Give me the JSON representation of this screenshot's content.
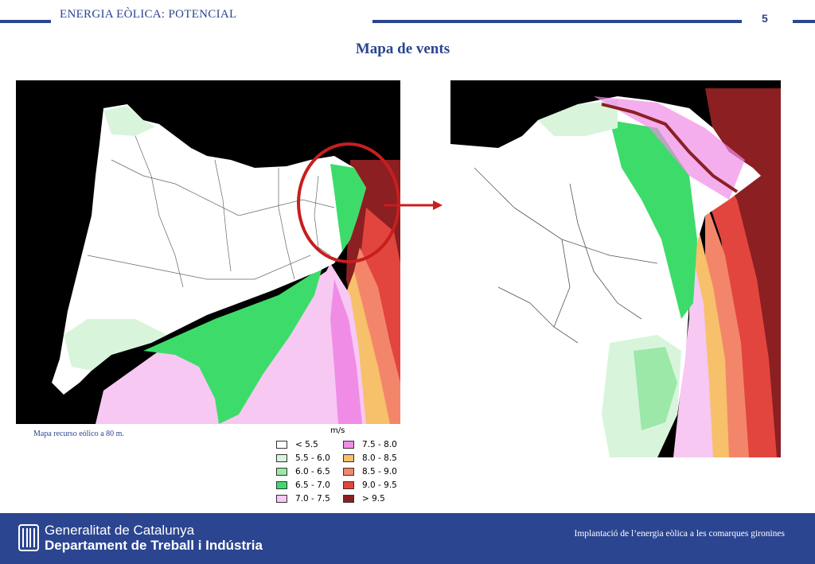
{
  "header": {
    "title": "ENERGIA EÒLICA: POTENCIAL",
    "page_number": "5"
  },
  "slide": {
    "title": "Mapa de vents"
  },
  "maps": {
    "left_caption": "Mapa recurso eólico a 80 m."
  },
  "legend": {
    "unit": "m/s",
    "items": [
      {
        "label": "< 5.5",
        "color": "#ffffff"
      },
      {
        "label": "5.5 - 6.0",
        "color": "#d8f5dc"
      },
      {
        "label": "6.0 - 6.5",
        "color": "#9be8a8"
      },
      {
        "label": "6.5 - 7.0",
        "color": "#3ddc6a"
      },
      {
        "label": "7.0 - 7.5",
        "color": "#f6c8f2"
      },
      {
        "label": "7.5 - 8.0",
        "color": "#f08ce6"
      },
      {
        "label": "8.0 - 8.5",
        "color": "#f7c06a"
      },
      {
        "label": "8.5 - 9.0",
        "color": "#f3866a"
      },
      {
        "label": "9.0 - 9.5",
        "color": "#e2453e"
      },
      {
        "label": "> 9.5",
        "color": "#8b1f22"
      }
    ]
  },
  "footer": {
    "org_line1": "Generalitat de Catalunya",
    "org_line2": "Departament de Treball i Indústria",
    "note": "Implantació de l’energia eòlica a les comarques gironines"
  },
  "colors": {
    "brand_blue": "#2b4590",
    "highlight_red": "#c81e1e"
  }
}
